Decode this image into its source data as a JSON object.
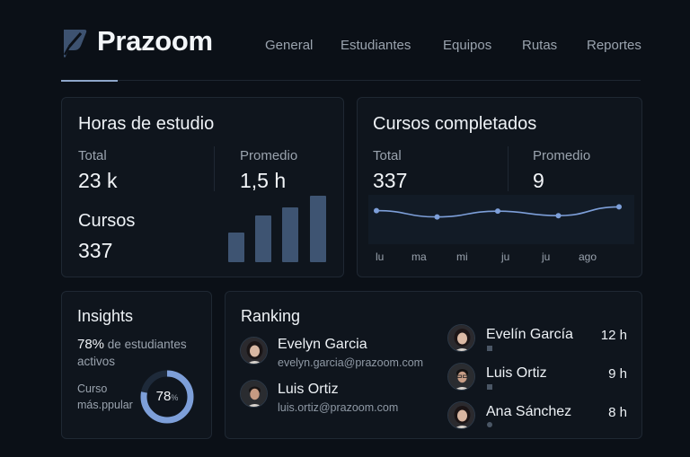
{
  "brand": {
    "name": "Prazoom"
  },
  "nav": {
    "items": [
      {
        "label": "General"
      },
      {
        "label": "Estudiantes"
      },
      {
        "label": "Equipos"
      },
      {
        "label": "Rutas"
      },
      {
        "label": "Reportes"
      }
    ],
    "active": "General"
  },
  "study_hours": {
    "title": "Horas de estudio",
    "total_label": "Total",
    "total_value": "23 k",
    "avg_label": "Promedio",
    "avg_value": "1,5 h",
    "courses_label": "Cursos",
    "courses_value": "337",
    "bars": [
      0.32,
      0.5,
      0.59,
      0.72
    ]
  },
  "completed": {
    "title": "Cursos completados",
    "total_label": "Total",
    "total_value": "337",
    "avg_label": "Promedio",
    "avg_value": "9",
    "x_labels": [
      "lu",
      "ma",
      "mi",
      "ju",
      "ju",
      "ago"
    ],
    "line_points": [
      0.2,
      0.45,
      0.22,
      0.4,
      0.05
    ]
  },
  "insights": {
    "title": "Insights",
    "percent": "78%",
    "text": "de estudiantes activos",
    "course_label_1": "Curso",
    "course_label_2": "más.ppular",
    "donut_value": "78",
    "donut_unit": "%",
    "donut_fraction": 0.78
  },
  "ranking": {
    "title": "Ranking",
    "left": [
      {
        "name": "Evelyn Garcia",
        "email": "evelyn.garcia@prazoom.com"
      },
      {
        "name": "Luis Ortiz",
        "email": "luis.ortiz@prazoom.com"
      }
    ],
    "right": [
      {
        "name": "Evelín García",
        "hours": "12 h"
      },
      {
        "name": "Luis Ortiz",
        "hours": "9 h"
      },
      {
        "name": "Ana Sánchez",
        "hours": "8 h"
      }
    ]
  },
  "colors": {
    "background": "#0b1017",
    "card": "#0f151d",
    "accent": "#7d9fd9",
    "bar": "#3e5472"
  }
}
